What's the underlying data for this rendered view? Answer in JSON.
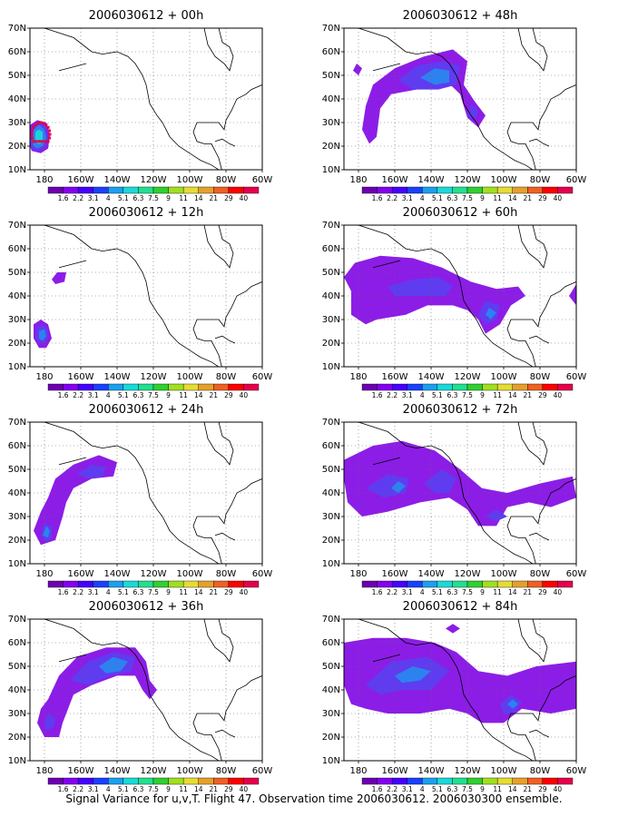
{
  "caption": "Signal Variance for u,v,T. Flight 47. Observation time 2006030612. 2006030300 ensemble.",
  "x_ticks": [
    "180",
    "160W",
    "140W",
    "120W",
    "100W",
    "80W",
    "60W"
  ],
  "y_ticks": [
    "10N",
    "20N",
    "30N",
    "40N",
    "50N",
    "60N",
    "70N"
  ],
  "colorbar": {
    "levels": [
      "1.6",
      "2.2",
      "3.1",
      "4",
      "5.1",
      "6.3",
      "7.5",
      "9",
      "11",
      "14",
      "21",
      "29",
      "40"
    ],
    "colors": [
      "#6d00b0",
      "#8400f0",
      "#4500ff",
      "#1a40ff",
      "#1aa0f0",
      "#1ad9d9",
      "#20e090",
      "#30d030",
      "#a0e020",
      "#e6dc32",
      "#e6a02a",
      "#f06022",
      "#ff0000",
      "#e6004c"
    ]
  },
  "fill_colors": {
    "outer": "#8c1de6",
    "mid": "#5f3cf0",
    "inner": "#2d82f0",
    "core": "#1ed2dc"
  },
  "chart_data": [
    {
      "type": "heatmap",
      "title": "2006030612 + 00h",
      "xlim": [
        172,
        300
      ],
      "ylim": [
        10,
        70
      ],
      "regions": [
        {
          "lon": 178,
          "lat": 24,
          "levels": 4
        }
      ],
      "markers": {
        "color": "#e6004c",
        "description": "ring of observation points"
      }
    },
    {
      "type": "heatmap",
      "title": "2006030612 + 48h",
      "xlim": [
        172,
        300
      ],
      "ylim": [
        10,
        70
      ]
    },
    {
      "type": "heatmap",
      "title": "2006030612 + 12h",
      "xlim": [
        172,
        300
      ],
      "ylim": [
        10,
        70
      ]
    },
    {
      "type": "heatmap",
      "title": "2006030612 + 60h",
      "xlim": [
        172,
        300
      ],
      "ylim": [
        10,
        70
      ]
    },
    {
      "type": "heatmap",
      "title": "2006030612 + 24h",
      "xlim": [
        172,
        300
      ],
      "ylim": [
        10,
        70
      ]
    },
    {
      "type": "heatmap",
      "title": "2006030612 + 72h",
      "xlim": [
        172,
        300
      ],
      "ylim": [
        10,
        70
      ]
    },
    {
      "type": "heatmap",
      "title": "2006030612 + 36h",
      "xlim": [
        172,
        300
      ],
      "ylim": [
        10,
        70
      ]
    },
    {
      "type": "heatmap",
      "title": "2006030612 + 84h",
      "xlim": [
        172,
        300
      ],
      "ylim": [
        10,
        70
      ]
    }
  ]
}
